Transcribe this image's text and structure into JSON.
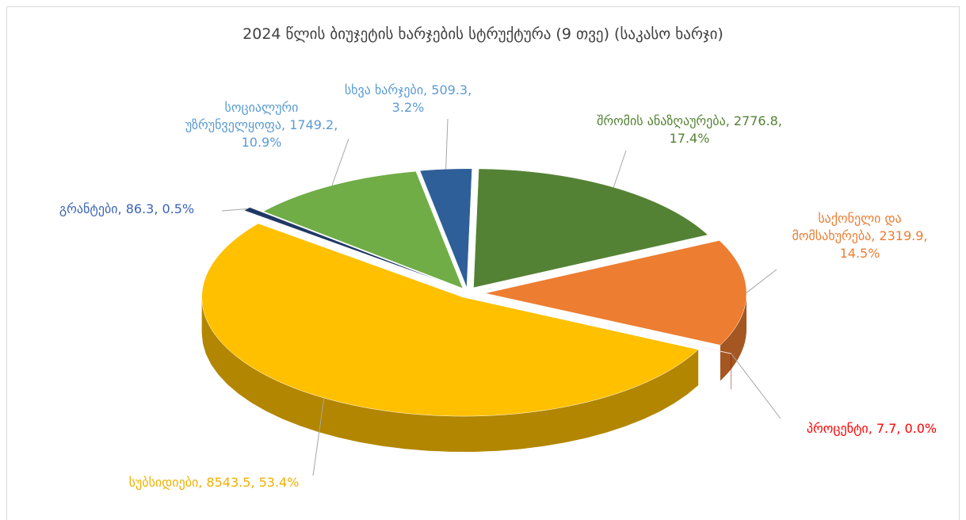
{
  "chart_data": {
    "type": "pie",
    "title": "2024 წლის ბიუჯეტის ხარჯების სტრუქტურა (9 თვე) (საკასო ხარჯი)",
    "categories": [
      "შრომის ანაზღაურება",
      "საქონელი და მომსახურება",
      "პროცენტი",
      "სუბსიდიები",
      "გრანტები",
      "სოციალური უზრუნველყოფა",
      "სხვა ხარჯები"
    ],
    "values": [
      2776.8,
      2319.9,
      7.7,
      8543.5,
      86.3,
      1749.2,
      509.3
    ],
    "value_labels": [
      "შრომის ანაზღაურება, 2776.8, 17.4%",
      "საქონელი და მომსახურება, 2319.9, 14.5%",
      "პროცენტი, 7.7, 0.0%",
      "სუბსიდიები, 8543.5, 53.4%",
      "გრანტები, 86.3, 0.5%",
      "სოციალური უზრუნველყოფა, 1749.2, 10.9%",
      "სხვა ხარჯები, 509.3, 3.2%"
    ],
    "colors": [
      "#548235",
      "#ed7d31",
      "#c00000",
      "#ffc000",
      "#203864",
      "#70ad47",
      "#2e5f99"
    ],
    "label_colors": [
      "#548235",
      "#ed7d31",
      "#ff0000",
      "#f0b000",
      "#3a63b8",
      "#5b9bd5",
      "#5b9bd5"
    ]
  }
}
